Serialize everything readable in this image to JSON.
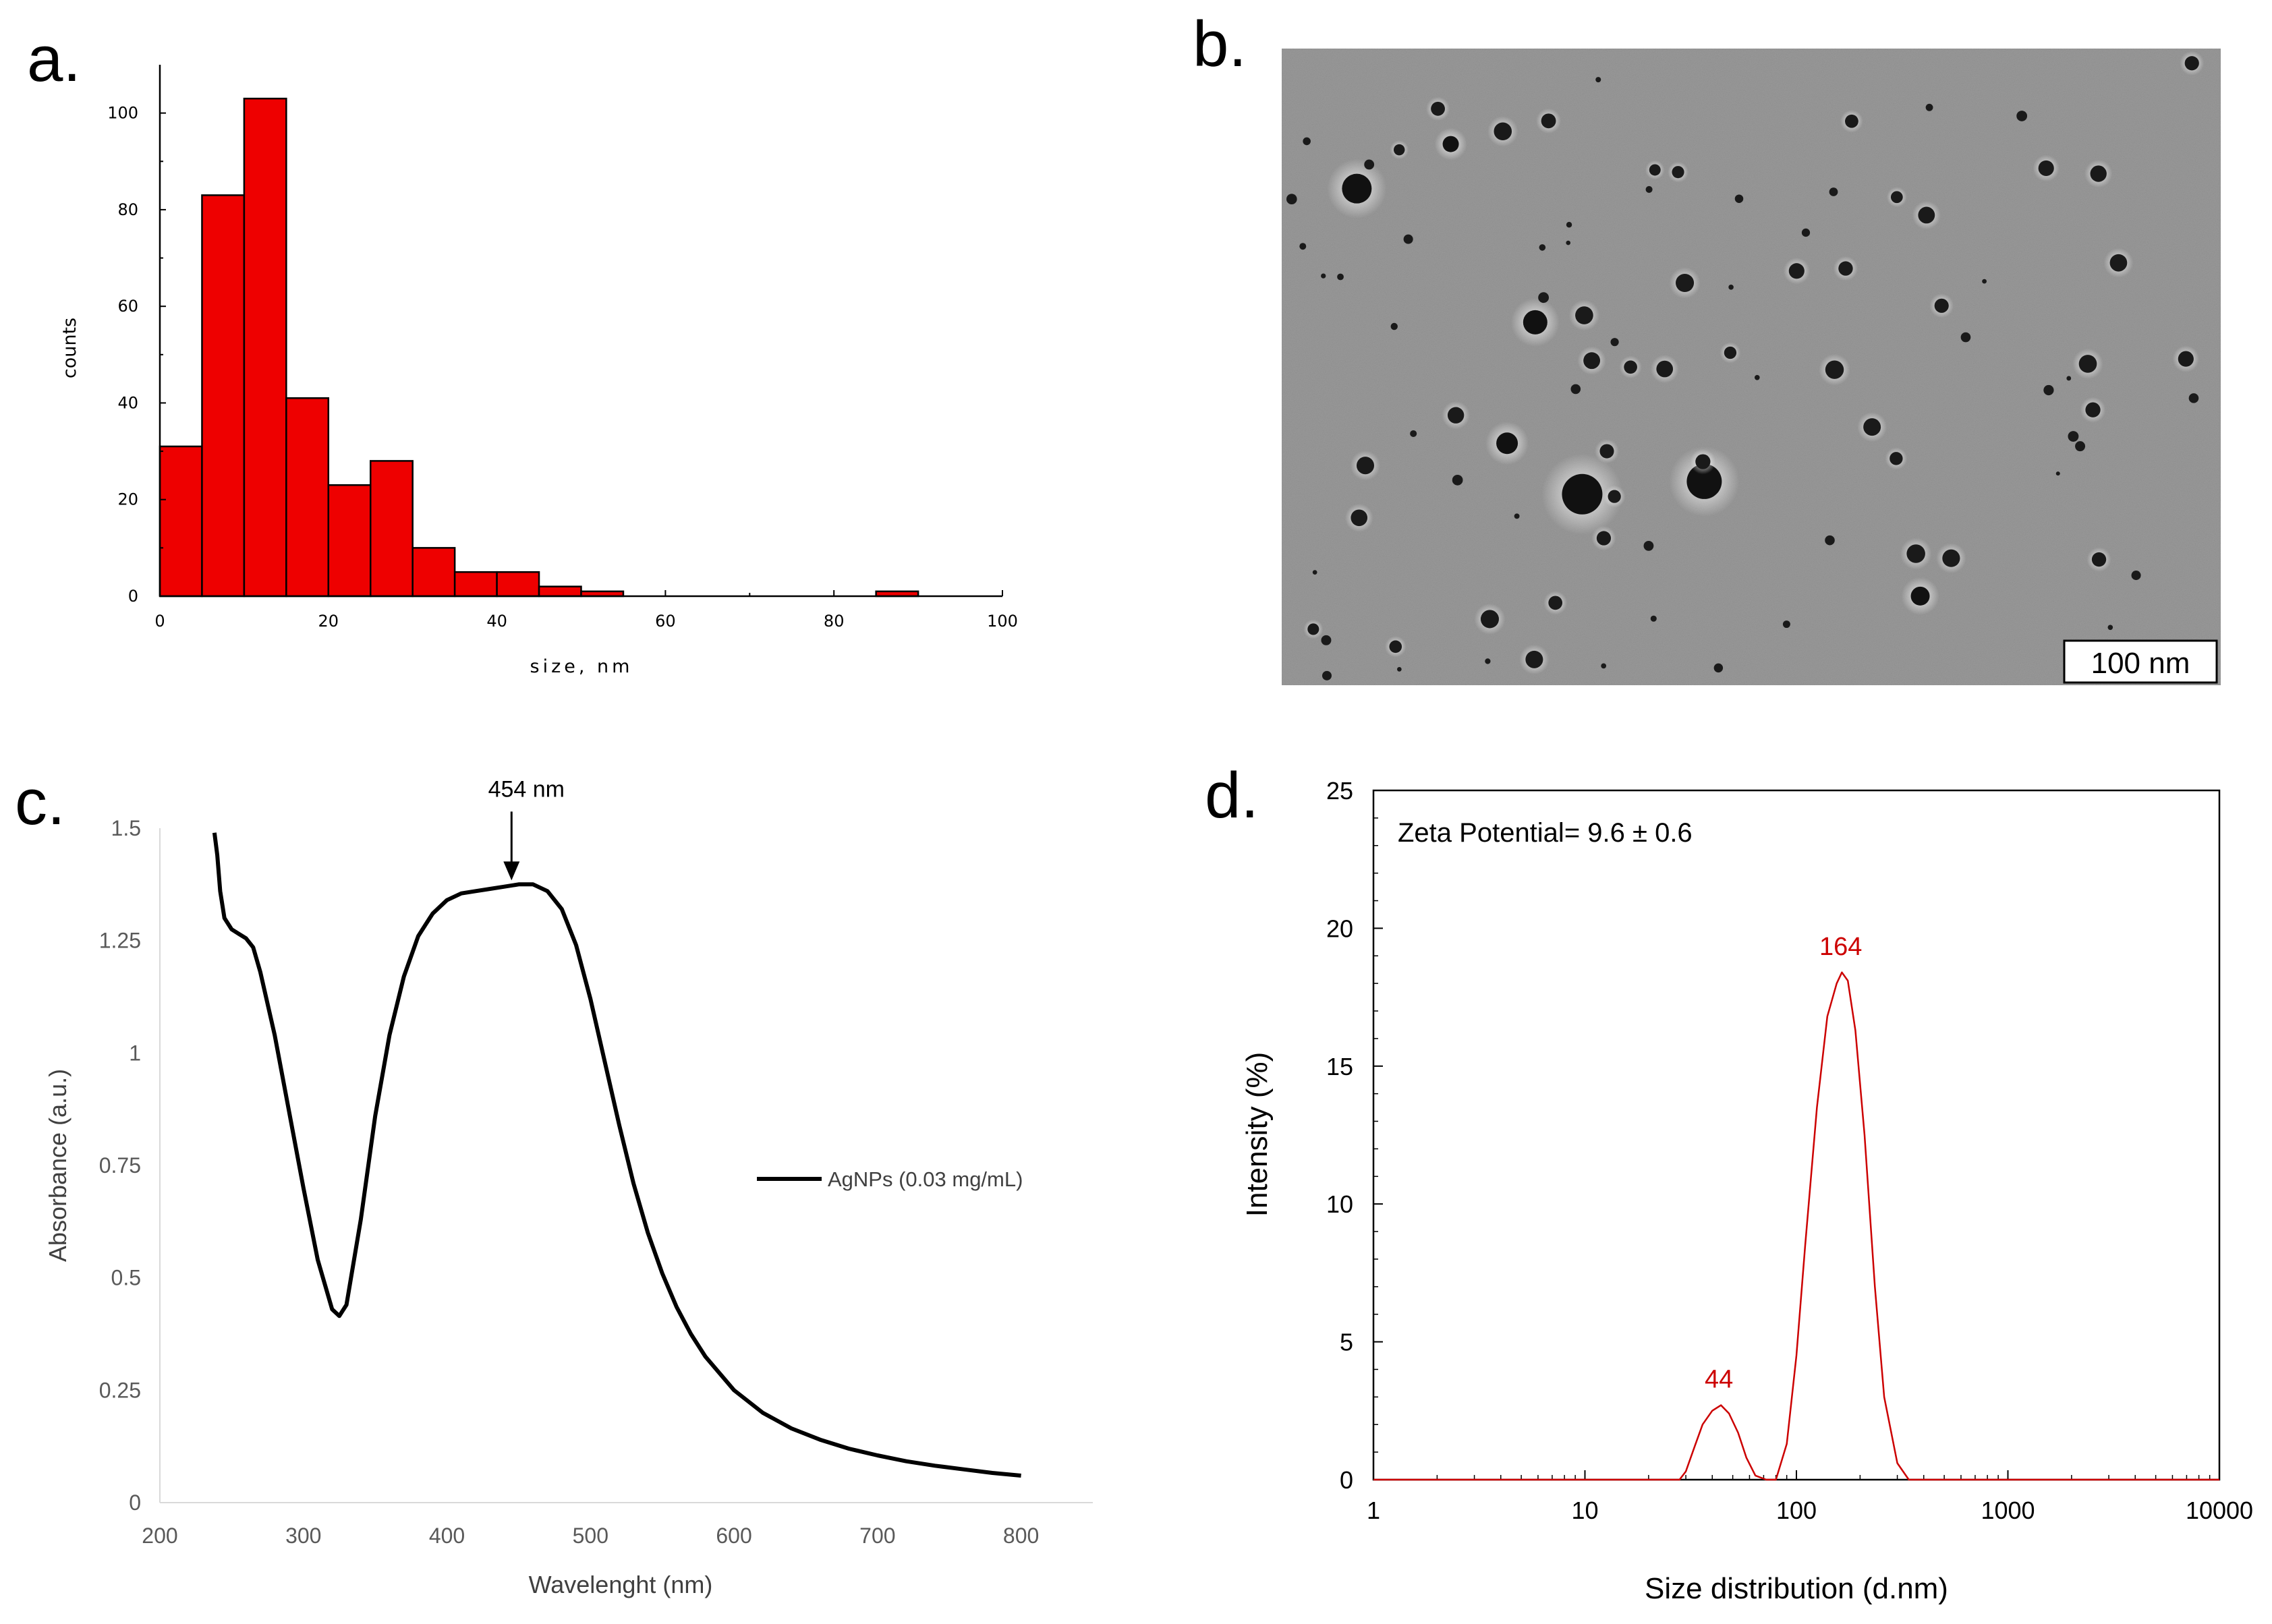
{
  "panels": {
    "a": "a.",
    "b": "b.",
    "c": "c.",
    "d": "d."
  },
  "colors": {
    "bar_fill": "#ee0000",
    "dls_line": "#cc0000",
    "axis": "#000000"
  },
  "chart_data": [
    {
      "id": "a",
      "type": "bar",
      "title": "",
      "xlabel": "size, nm",
      "ylabel": "counts",
      "xlim": [
        0,
        100
      ],
      "ylim": [
        0,
        110
      ],
      "xticks": [
        0,
        20,
        40,
        60,
        80,
        100
      ],
      "yticks": [
        0,
        20,
        40,
        60,
        80,
        100
      ],
      "bin_width": 5,
      "bins": [
        {
          "start": 0,
          "value": 31
        },
        {
          "start": 5,
          "value": 83
        },
        {
          "start": 10,
          "value": 103
        },
        {
          "start": 15,
          "value": 41
        },
        {
          "start": 20,
          "value": 23
        },
        {
          "start": 25,
          "value": 28
        },
        {
          "start": 30,
          "value": 10
        },
        {
          "start": 35,
          "value": 5
        },
        {
          "start": 40,
          "value": 5
        },
        {
          "start": 45,
          "value": 2
        },
        {
          "start": 50,
          "value": 1
        },
        {
          "start": 85,
          "value": 1
        }
      ]
    },
    {
      "id": "b",
      "type": "image",
      "description": "TEM micrograph",
      "scale_bar": "100 nm"
    },
    {
      "id": "c",
      "type": "line",
      "xlabel": "Wavelenght (nm)",
      "ylabel": "Absorbance (a.u.)",
      "xlim": [
        200,
        850
      ],
      "ylim": [
        0,
        1.5
      ],
      "xticks": [
        "200",
        "300",
        "400",
        "500",
        "600",
        "700",
        "800"
      ],
      "yticks": [
        "0",
        "0.25",
        "0.5",
        "0.75",
        "1",
        "1.25",
        "1.5"
      ],
      "annotation": {
        "text": "454 nm",
        "x": 445,
        "y": 1.375
      },
      "series": [
        {
          "name": "AgNPs (0.03 mg/mL)",
          "x": [
            238,
            240,
            242,
            245,
            250,
            255,
            260,
            265,
            270,
            280,
            290,
            300,
            310,
            320,
            325,
            330,
            340,
            350,
            360,
            370,
            380,
            390,
            400,
            410,
            420,
            430,
            440,
            450,
            460,
            470,
            480,
            490,
            500,
            510,
            520,
            530,
            540,
            550,
            560,
            570,
            580,
            600,
            620,
            640,
            660,
            680,
            700,
            720,
            740,
            760,
            780,
            800
          ],
          "y": [
            1.49,
            1.44,
            1.36,
            1.3,
            1.275,
            1.265,
            1.255,
            1.235,
            1.18,
            1.04,
            0.87,
            0.7,
            0.54,
            0.43,
            0.415,
            0.44,
            0.63,
            0.86,
            1.04,
            1.17,
            1.26,
            1.31,
            1.34,
            1.355,
            1.36,
            1.365,
            1.37,
            1.375,
            1.375,
            1.36,
            1.32,
            1.24,
            1.12,
            0.98,
            0.84,
            0.71,
            0.6,
            0.51,
            0.435,
            0.375,
            0.325,
            0.25,
            0.2,
            0.165,
            0.14,
            0.12,
            0.105,
            0.092,
            0.082,
            0.074,
            0.066,
            0.06
          ]
        }
      ]
    },
    {
      "id": "d",
      "type": "line",
      "xscale": "log",
      "xlabel": "Size distribution (d.nm)",
      "ylabel": "Intensity (%)",
      "xlim": [
        1,
        10000
      ],
      "ylim": [
        0,
        25
      ],
      "xticks": [
        "1",
        "10",
        "100",
        "1000",
        "10000"
      ],
      "yticks": [
        "0",
        "5",
        "10",
        "15",
        "20",
        "25"
      ],
      "note": "Zeta Potential= 9.6 ± 0.6",
      "peaks": [
        {
          "label": "44",
          "x": 43,
          "y": 2.7
        },
        {
          "label": "164",
          "x": 162,
          "y": 18.4
        }
      ],
      "series": [
        {
          "name": "Intensity",
          "x": [
            1,
            28,
            30,
            33,
            36,
            40,
            44,
            48,
            53,
            58,
            64,
            72,
            80,
            90,
            100,
            110,
            125,
            140,
            155,
            164,
            175,
            190,
            210,
            235,
            260,
            300,
            340,
            10000
          ],
          "y": [
            0,
            0,
            0.3,
            1.2,
            2.0,
            2.5,
            2.7,
            2.4,
            1.7,
            0.8,
            0.15,
            0,
            0,
            1.3,
            4.5,
            8.5,
            13.5,
            16.8,
            18.0,
            18.4,
            18.1,
            16.3,
            12.5,
            7.0,
            3.0,
            0.6,
            0,
            0
          ]
        }
      ]
    }
  ]
}
